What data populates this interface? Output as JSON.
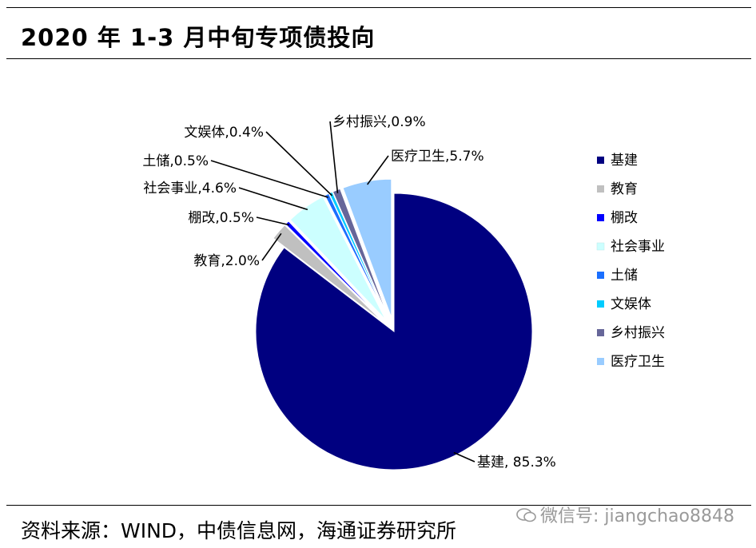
{
  "page": {
    "title": "2020 年 1-3 月中旬专项债投向",
    "source": "资料来源：WIND，中债信息网，海通证券研究所",
    "watermark": "微信号: jiangchao8848"
  },
  "chart_data": {
    "type": "pie",
    "title": "",
    "legend": "right",
    "series": [
      {
        "name": "基建",
        "value": 85.3,
        "label": "基建, 85.3%",
        "color": "#000080"
      },
      {
        "name": "教育",
        "value": 2.0,
        "label": "教育,2.0%",
        "color": "#c0c0c0"
      },
      {
        "name": "棚改",
        "value": 0.5,
        "label": "棚改,0.5%",
        "color": "#0000ff"
      },
      {
        "name": "社会事业",
        "value": 4.6,
        "label": "社会事业,4.6%",
        "color": "#ccffff"
      },
      {
        "name": "土储",
        "value": 0.5,
        "label": "土储,0.5%",
        "color": "#1a6fff"
      },
      {
        "name": "文娱体",
        "value": 0.4,
        "label": "文娱体,0.4%",
        "color": "#00ccff"
      },
      {
        "name": "乡村振兴",
        "value": 0.9,
        "label": "乡村振兴,0.9%",
        "color": "#666699"
      },
      {
        "name": "医疗卫生",
        "value": 5.7,
        "label": "医疗卫生,5.7%",
        "color": "#99ccff"
      }
    ]
  }
}
